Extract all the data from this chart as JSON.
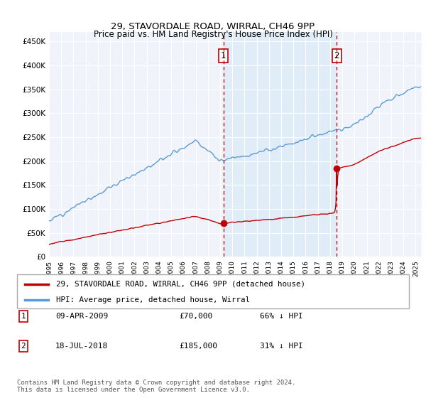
{
  "title": "29, STAVORDALE ROAD, WIRRAL, CH46 9PP",
  "subtitle": "Price paid vs. HM Land Registry's House Price Index (HPI)",
  "ylabel_ticks": [
    "£0",
    "£50K",
    "£100K",
    "£150K",
    "£200K",
    "£250K",
    "£300K",
    "£350K",
    "£400K",
    "£450K"
  ],
  "ytick_values": [
    0,
    50000,
    100000,
    150000,
    200000,
    250000,
    300000,
    350000,
    400000,
    450000
  ],
  "ylim": [
    0,
    470000
  ],
  "xlim_start": 1995.0,
  "xlim_end": 2025.5,
  "hpi_color": "#5b9bd5",
  "price_color": "#c00000",
  "vline_color": "#c00000",
  "sale1_year": 2009.27,
  "sale1_price": 70000,
  "sale2_year": 2018.55,
  "sale2_price": 185000,
  "shade_color": "#dceaf7",
  "legend_label_red": "29, STAVORDALE ROAD, WIRRAL, CH46 9PP (detached house)",
  "legend_label_blue": "HPI: Average price, detached house, Wirral",
  "table_row1": [
    "1",
    "09-APR-2009",
    "£70,000",
    "66% ↓ HPI"
  ],
  "table_row2": [
    "2",
    "18-JUL-2018",
    "£185,000",
    "31% ↓ HPI"
  ],
  "footer": "Contains HM Land Registry data © Crown copyright and database right 2024.\nThis data is licensed under the Open Government Licence v3.0.",
  "chart_bg": "#f0f4fa",
  "grid_color": "#ffffff"
}
